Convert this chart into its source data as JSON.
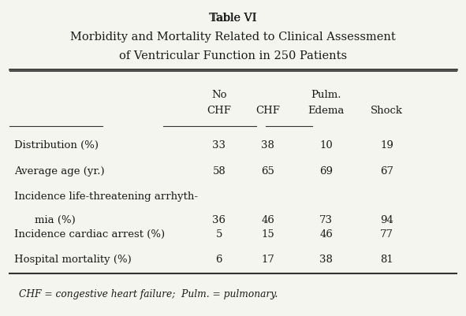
{
  "title_line1": "Table VI",
  "title_line2": "Morbidity and Mortality Related to Clinical Assessment",
  "title_line3": "of Ventricular Function in 250 Patients",
  "col_headers_line1": [
    "",
    "No",
    "",
    "Pulm.",
    ""
  ],
  "col_headers_line2": [
    "",
    "CHF",
    "CHF",
    "Edema",
    "Shock"
  ],
  "rows": [
    [
      "Distribution (%)",
      "33",
      "38",
      "10",
      "19"
    ],
    [
      "Average age (yr.)",
      "58",
      "65",
      "69",
      "67"
    ],
    [
      "Incidence life-threatening arrhyth-\nmia (%)",
      "36",
      "46",
      "73",
      "94"
    ],
    [
      "Incidence cardiac arrest (%)",
      "5",
      "15",
      "46",
      "77"
    ],
    [
      "Hospital mortality (%)",
      "6",
      "17",
      "38",
      "81"
    ]
  ],
  "footnote": "CHF = congestive heart failure;  Pulm. = pulmonary.",
  "bg_color": "#f5f5f0",
  "text_color": "#1a1a1a",
  "line_color": "#333333"
}
